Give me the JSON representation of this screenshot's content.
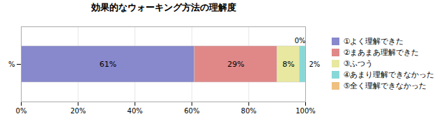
{
  "chart_data": {
    "type": "bar",
    "orientation": "horizontal",
    "stacked": true,
    "title": "効果的なウォーキング方法の理解度",
    "categories": [
      "%"
    ],
    "series": [
      {
        "name": "①よく理解できた",
        "color": "#8888CC",
        "values": [
          61
        ],
        "value_labels": [
          "61%"
        ]
      },
      {
        "name": "②まあまあ理解できた",
        "color": "#E08888",
        "values": [
          29
        ],
        "value_labels": [
          "29%"
        ]
      },
      {
        "name": "③ふつう",
        "color": "#E8E8A0",
        "values": [
          8
        ],
        "value_labels": [
          "8%"
        ]
      },
      {
        "name": "④あまり理解できなかった",
        "color": "#88D8D8",
        "values": [
          2
        ],
        "value_labels": [
          "2%"
        ]
      },
      {
        "name": "⑤全く理解できなかった",
        "color": "#F0C080",
        "values": [
          0
        ],
        "value_labels": [
          "0%"
        ]
      }
    ],
    "xlim": [
      0,
      100
    ],
    "xticks": [
      {
        "value": 0,
        "label": "0%"
      },
      {
        "value": 20,
        "label": "20%"
      },
      {
        "value": 40,
        "label": "40%"
      },
      {
        "value": 60,
        "label": "60%"
      },
      {
        "value": 80,
        "label": "80%"
      },
      {
        "value": 100,
        "label": "100%"
      }
    ],
    "grid": true,
    "data_labels": true
  }
}
